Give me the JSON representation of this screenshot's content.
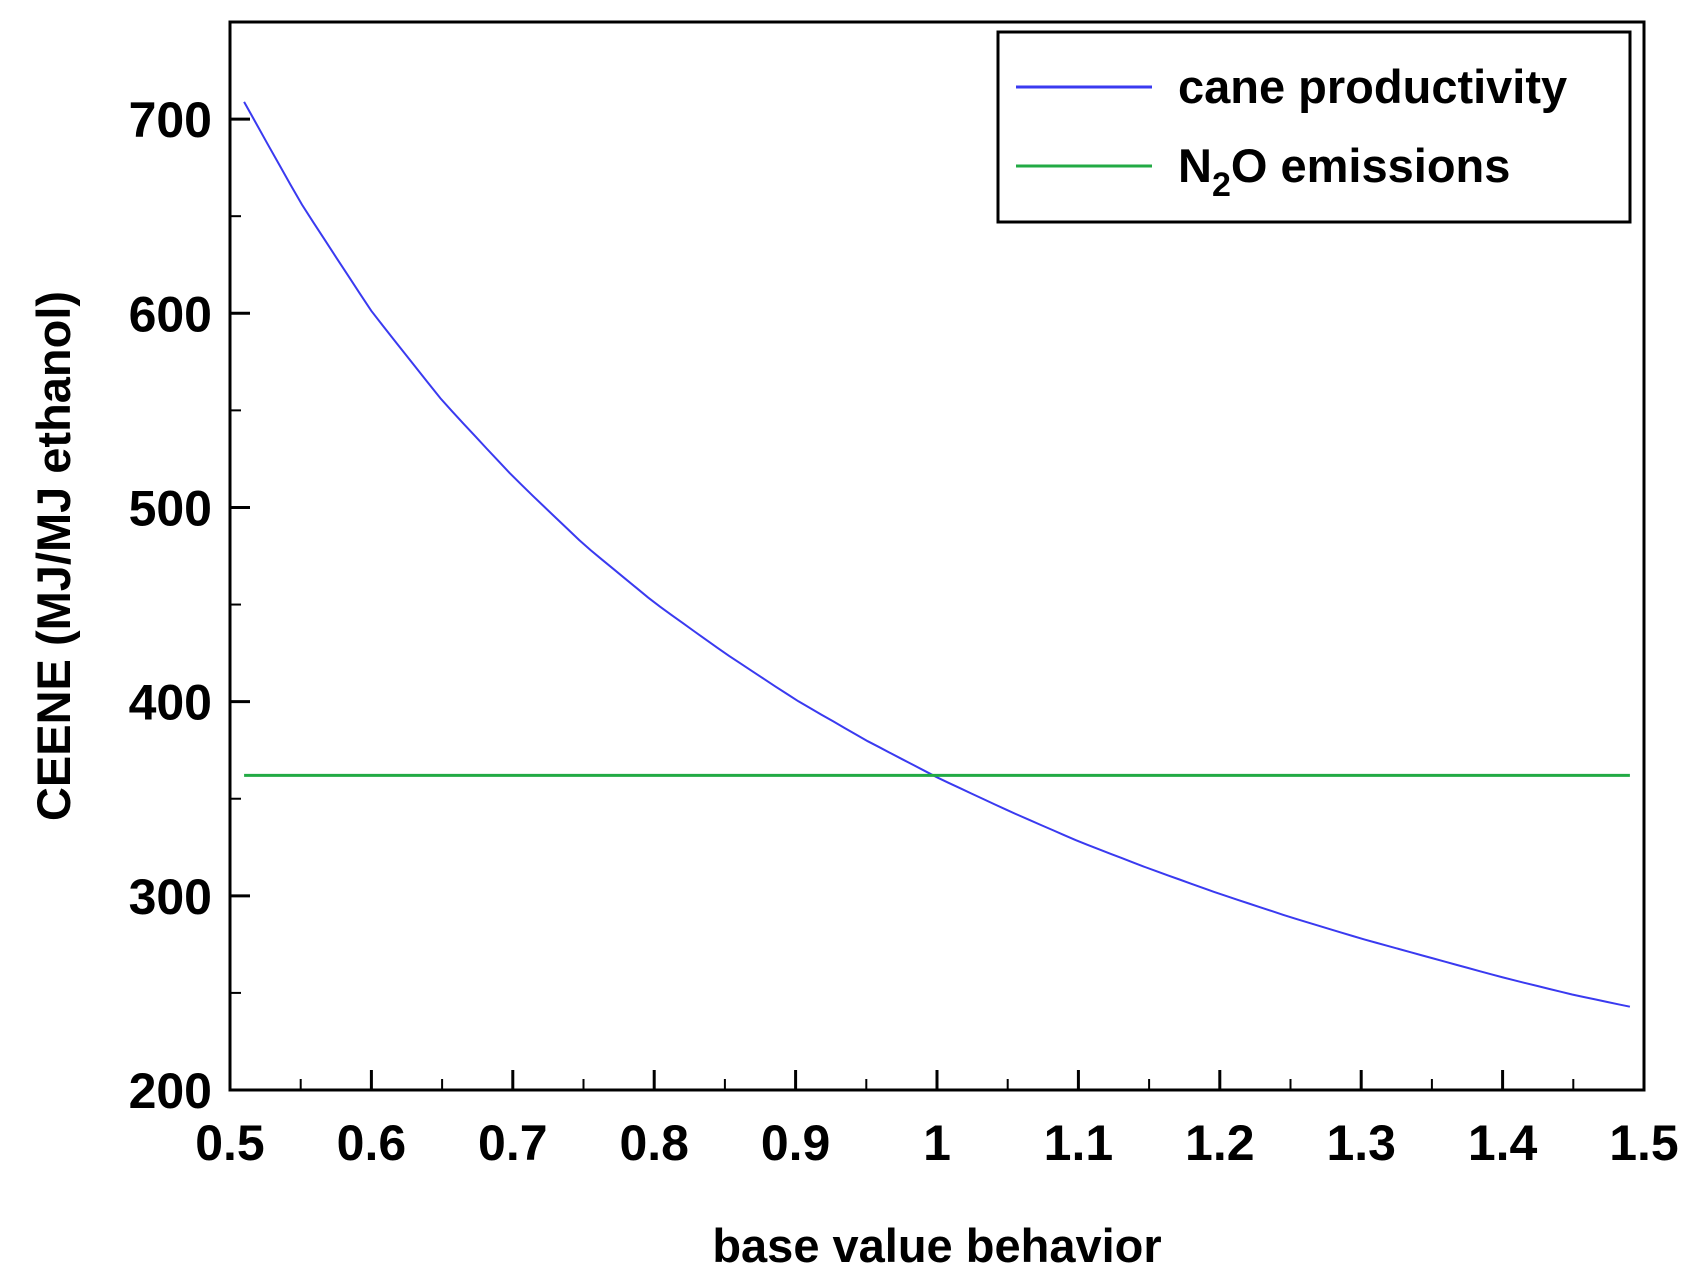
{
  "chart_data": {
    "type": "line",
    "title": "",
    "xlabel": "base value behavior",
    "ylabel": "CEENE (MJ/MJ ethanol)",
    "xlim": [
      0.5,
      1.5
    ],
    "ylim": [
      200,
      750
    ],
    "xticks": [
      0.5,
      0.6,
      0.7,
      0.8,
      0.9,
      1,
      1.1,
      1.2,
      1.3,
      1.4,
      1.5
    ],
    "xtick_labels": [
      "0.5",
      "0.6",
      "0.7",
      "0.8",
      "0.9",
      "1",
      "1.1",
      "1.2",
      "1.3",
      "1.4",
      "1.5"
    ],
    "yticks": [
      200,
      300,
      400,
      500,
      600,
      700
    ],
    "ytick_labels": [
      "200",
      "300",
      "400",
      "500",
      "600",
      "700"
    ],
    "grid": false,
    "legend_position": "top-right",
    "series": [
      {
        "name": "cane productivity",
        "label_main": "cane productivity",
        "label_sub": "",
        "label_tail": "",
        "color": "#3a3af0",
        "x": [
          0.51,
          0.55,
          0.6,
          0.65,
          0.7,
          0.75,
          0.8,
          0.85,
          0.9,
          0.95,
          1.0,
          1.05,
          1.1,
          1.15,
          1.2,
          1.25,
          1.3,
          1.35,
          1.4,
          1.45,
          1.49
        ],
        "values": [
          709,
          657,
          601,
          555,
          516,
          481,
          451,
          425,
          401,
          380,
          361,
          344,
          328,
          314,
          301,
          289,
          278,
          268,
          258,
          249,
          243
        ]
      },
      {
        "name": "N2O emissions",
        "label_main": "N",
        "label_sub": "2",
        "label_tail": "O emissions",
        "color": "#22aa44",
        "x": [
          0.51,
          1.49
        ],
        "values": [
          362,
          362
        ]
      }
    ]
  }
}
